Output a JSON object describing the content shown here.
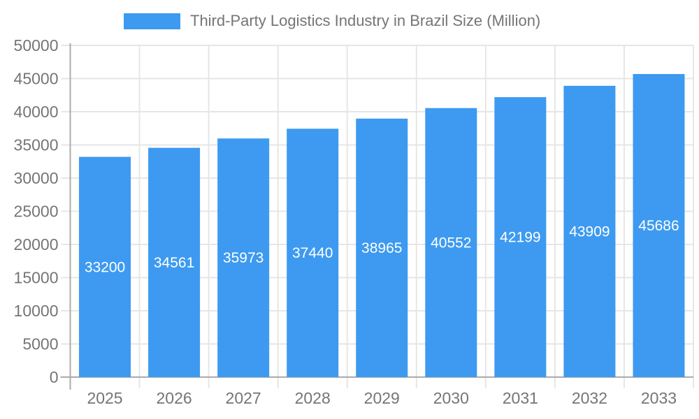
{
  "chart_data": {
    "type": "bar",
    "title": "Third-Party Logistics Industry in Brazil Size (Million)",
    "legend": [
      "Third-Party Logistics Industry in Brazil Size (Million)"
    ],
    "legend_position": "top",
    "categories": [
      "2025",
      "2026",
      "2027",
      "2028",
      "2029",
      "2030",
      "2031",
      "2032",
      "2033"
    ],
    "values": [
      33200,
      34561,
      35973,
      37440,
      38965,
      40552,
      42199,
      43909,
      45686
    ],
    "bar_value_labels": [
      "33200",
      "34561",
      "35973",
      "37440",
      "38965",
      "40552",
      "42199",
      "43909",
      "45686"
    ],
    "xlabel": "",
    "ylabel": "",
    "ylim": [
      0,
      50000
    ],
    "yticks": [
      0,
      5000,
      10000,
      15000,
      20000,
      25000,
      30000,
      35000,
      40000,
      45000,
      50000
    ],
    "grid": true,
    "colors": {
      "bar": "#3D9AF0",
      "bar_label_text": "#ffffff",
      "axis_text": "#757575",
      "grid_line": "#e6e6e6",
      "axis_line": "#ababab"
    }
  }
}
